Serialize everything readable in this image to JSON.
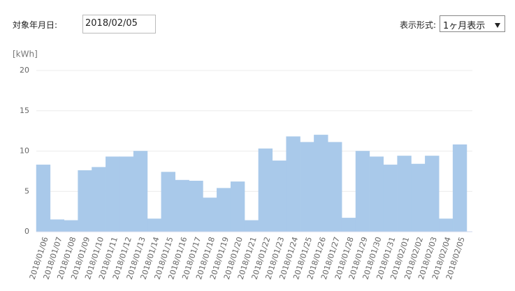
{
  "form": {
    "date_label": "対象年月日:",
    "date_value": "2018/02/05",
    "mode_label": "表示形式:",
    "mode_value": "1ヶ月表示"
  },
  "chart_data": {
    "type": "bar",
    "unit_label": "[kWh]",
    "categories": [
      "2018/01/06",
      "2018/01/07",
      "2018/01/08",
      "2018/01/09",
      "2018/01/10",
      "2018/01/11",
      "2018/01/12",
      "2018/01/13",
      "2018/01/14",
      "2018/01/15",
      "2018/01/16",
      "2018/01/17",
      "2018/01/18",
      "2018/01/19",
      "2018/01/20",
      "2018/01/21",
      "2018/01/22",
      "2018/01/23",
      "2018/01/24",
      "2018/01/25",
      "2018/01/26",
      "2018/01/27",
      "2018/01/28",
      "2018/01/29",
      "2018/01/30",
      "2018/01/31",
      "2018/02/01",
      "2018/02/02",
      "2018/02/03",
      "2018/02/04",
      "2018/02/05"
    ],
    "values": [
      8.3,
      1.5,
      1.4,
      7.6,
      8.0,
      9.3,
      9.3,
      10.0,
      1.6,
      7.4,
      6.4,
      6.3,
      4.2,
      5.4,
      6.2,
      1.4,
      10.3,
      8.8,
      11.8,
      11.1,
      12.0,
      11.1,
      1.7,
      10.0,
      9.3,
      8.3,
      9.4,
      8.4,
      9.4,
      1.6,
      10.8
    ],
    "color": "#a9c9ea",
    "ylim": [
      0,
      20
    ],
    "yticks": [
      0,
      5,
      10,
      15,
      20
    ],
    "grid": true
  }
}
